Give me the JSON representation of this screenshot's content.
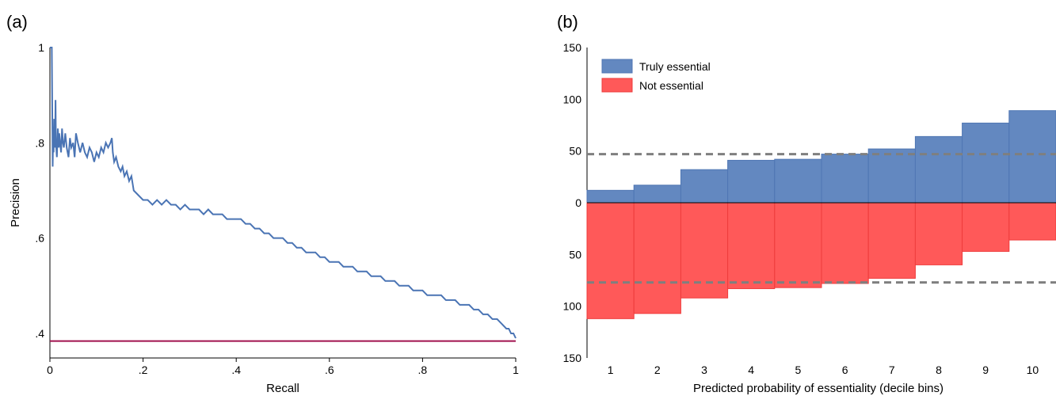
{
  "panels": {
    "a_label": "(a)",
    "b_label": "(b)"
  },
  "chart_data": [
    {
      "type": "line",
      "panel": "(a)",
      "xlabel": "Recall",
      "ylabel": "Precision",
      "xlim": [
        0,
        1
      ],
      "ylim": [
        0.38,
        1.0
      ],
      "xticks": [
        0,
        0.2,
        0.4,
        0.6,
        0.8,
        1
      ],
      "xtick_labels": [
        "0",
        ".2",
        ".4",
        ".6",
        ".8",
        "1"
      ],
      "yticks": [
        0.4,
        0.6,
        0.8,
        1
      ],
      "ytick_labels": [
        ".4",
        ".6",
        ".8",
        "1"
      ],
      "grid": false,
      "series": [
        {
          "color": "#4a74b4",
          "x": [
            0,
            0.004,
            0.006,
            0.007,
            0.008,
            0.009,
            0.011,
            0.012,
            0.013,
            0.015,
            0.017,
            0.019,
            0.02,
            0.022,
            0.024,
            0.026,
            0.028,
            0.03,
            0.033,
            0.036,
            0.04,
            0.043,
            0.046,
            0.05,
            0.053,
            0.056,
            0.06,
            0.065,
            0.07,
            0.075,
            0.08,
            0.085,
            0.09,
            0.095,
            0.1,
            0.105,
            0.11,
            0.115,
            0.12,
            0.125,
            0.13,
            0.133,
            0.135,
            0.138,
            0.142,
            0.147,
            0.152,
            0.156,
            0.16,
            0.165,
            0.17,
            0.175,
            0.18,
            0.19,
            0.2,
            0.21,
            0.22,
            0.23,
            0.24,
            0.25,
            0.26,
            0.27,
            0.28,
            0.29,
            0.3,
            0.31,
            0.32,
            0.33,
            0.34,
            0.35,
            0.36,
            0.37,
            0.38,
            0.39,
            0.4,
            0.41,
            0.42,
            0.43,
            0.44,
            0.45,
            0.46,
            0.47,
            0.48,
            0.49,
            0.5,
            0.51,
            0.52,
            0.53,
            0.54,
            0.55,
            0.56,
            0.57,
            0.58,
            0.59,
            0.6,
            0.61,
            0.62,
            0.63,
            0.64,
            0.65,
            0.66,
            0.67,
            0.68,
            0.69,
            0.7,
            0.71,
            0.72,
            0.73,
            0.74,
            0.75,
            0.76,
            0.77,
            0.78,
            0.79,
            0.8,
            0.81,
            0.82,
            0.83,
            0.84,
            0.85,
            0.86,
            0.87,
            0.88,
            0.89,
            0.9,
            0.91,
            0.92,
            0.93,
            0.94,
            0.95,
            0.96,
            0.97,
            0.98,
            0.985,
            0.99,
            0.995,
            1.0
          ],
          "y": [
            1.0,
            1.0,
            0.75,
            0.82,
            0.78,
            0.85,
            0.79,
            0.89,
            0.8,
            0.77,
            0.83,
            0.79,
            0.82,
            0.8,
            0.78,
            0.83,
            0.8,
            0.79,
            0.82,
            0.79,
            0.77,
            0.81,
            0.79,
            0.8,
            0.77,
            0.82,
            0.8,
            0.78,
            0.8,
            0.78,
            0.77,
            0.79,
            0.78,
            0.76,
            0.78,
            0.77,
            0.79,
            0.78,
            0.8,
            0.79,
            0.8,
            0.81,
            0.78,
            0.76,
            0.77,
            0.75,
            0.74,
            0.75,
            0.73,
            0.74,
            0.72,
            0.73,
            0.7,
            0.69,
            0.68,
            0.68,
            0.67,
            0.68,
            0.67,
            0.68,
            0.67,
            0.67,
            0.66,
            0.67,
            0.66,
            0.66,
            0.66,
            0.65,
            0.66,
            0.65,
            0.65,
            0.65,
            0.64,
            0.64,
            0.64,
            0.64,
            0.63,
            0.63,
            0.62,
            0.62,
            0.61,
            0.61,
            0.6,
            0.6,
            0.6,
            0.59,
            0.59,
            0.58,
            0.58,
            0.57,
            0.57,
            0.57,
            0.56,
            0.56,
            0.55,
            0.55,
            0.55,
            0.54,
            0.54,
            0.54,
            0.53,
            0.53,
            0.53,
            0.52,
            0.52,
            0.52,
            0.51,
            0.51,
            0.51,
            0.5,
            0.5,
            0.5,
            0.49,
            0.49,
            0.49,
            0.48,
            0.48,
            0.48,
            0.48,
            0.47,
            0.47,
            0.47,
            0.46,
            0.46,
            0.46,
            0.45,
            0.45,
            0.44,
            0.44,
            0.43,
            0.43,
            0.42,
            0.41,
            0.41,
            0.4,
            0.4,
            0.39
          ]
        },
        {
          "color": "#a0124e",
          "x": [
            0,
            1
          ],
          "y": [
            0.384,
            0.384
          ]
        }
      ]
    },
    {
      "type": "bar",
      "panel": "(b)",
      "xlabel": "Predicted probability of essentiality (decile bins)",
      "ylabel": "",
      "categories": [
        "1",
        "2",
        "3",
        "4",
        "5",
        "6",
        "7",
        "8",
        "9",
        "10"
      ],
      "ylim": [
        -150,
        150
      ],
      "yticks": [
        150,
        100,
        50,
        0,
        -50,
        -100,
        -150
      ],
      "ytick_labels": [
        "150",
        "100",
        "50",
        "0",
        "50",
        "100",
        "150"
      ],
      "legend_position": "top-left",
      "grid": false,
      "series": [
        {
          "name": "Truly essential",
          "color": "#6388c0",
          "values": [
            12,
            17,
            32,
            41,
            42,
            47,
            52,
            64,
            77,
            89
          ]
        },
        {
          "name": "Not essential",
          "color": "#ff5959",
          "values": [
            -112,
            -107,
            -92,
            -83,
            -82,
            -78,
            -73,
            -60,
            -47,
            -36
          ]
        }
      ],
      "reference_lines": [
        {
          "y": 47,
          "color": "#7f7f7f",
          "style": "dashed"
        },
        {
          "y": -77,
          "color": "#7f7f7f",
          "style": "dashed"
        }
      ]
    }
  ]
}
